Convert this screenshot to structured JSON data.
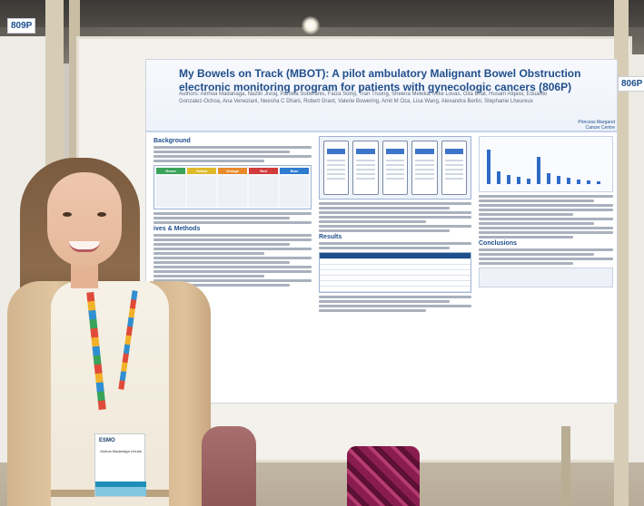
{
  "boards": {
    "left_number": "809P",
    "right_number": "806P"
  },
  "poster": {
    "title": "My Bowels on Track (MBOT): A pilot ambulatory Malignant Bowel Obstruction electronic monitoring program for patients with gynecologic cancers (806P)",
    "authors": "Authors: Ainhoa Madariaga, Nazlin Jivraj, Pamela Soberanis, Faiza Somji, Tran Truong, Sheena Meleka, Mike Lovas, Gita Bhat, Husam Alqaisi, Eduardo Gonzalez-Ochoa, Ana Veneziani, Neesha C Dhani, Robert Grant, Valerie Bowering, Amit M Oza, Lisa Wang, Alexandra Berlin, Stephanie Lheureux",
    "logo": "Princess Margaret Cancer Centre",
    "sections": {
      "background": "Background",
      "methods": "ives & Methods",
      "results": "Results",
      "conclusions": "Conclusions"
    },
    "grid_headers": [
      "Green",
      "Yellow",
      "Orange",
      "Red",
      "Blue"
    ],
    "grid_colors": [
      "#3aa35a",
      "#e0b92a",
      "#e98a2a",
      "#d13b3b",
      "#2f7bd0"
    ]
  },
  "badge": {
    "brand": "ESMO",
    "name": "Ainhoa Madariaga Urrutia"
  }
}
